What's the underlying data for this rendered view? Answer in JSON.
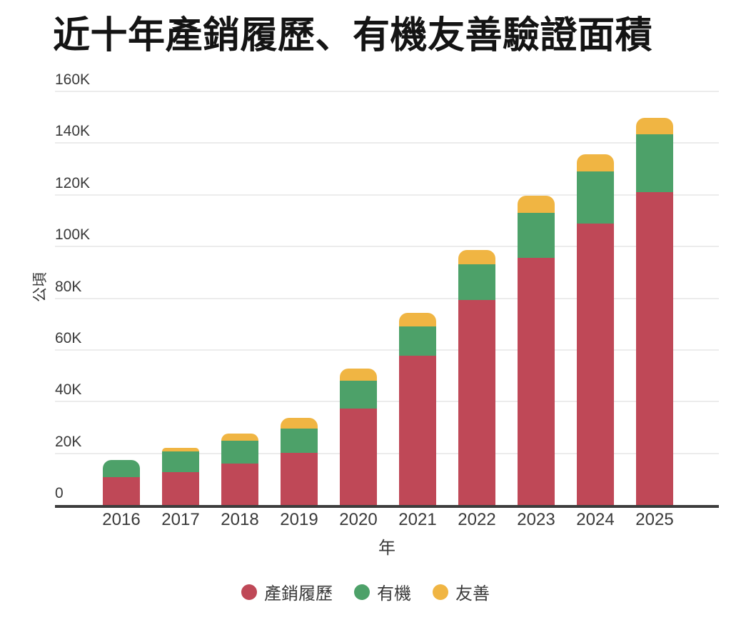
{
  "page": {
    "background": "#ffffff"
  },
  "chart_data": {
    "type": "bar",
    "stacked": true,
    "title": "近十年產銷履歷、有機友善驗證面積",
    "xlabel": "年",
    "ylabel": "公頃",
    "categories": [
      "2016",
      "2017",
      "2018",
      "2019",
      "2020",
      "2021",
      "2022",
      "2023",
      "2024",
      "2025"
    ],
    "series": [
      {
        "key": "traceability",
        "name": "產銷履歷",
        "color": "#bf4857",
        "values": [
          10800,
          12700,
          15900,
          20100,
          37200,
          57700,
          79300,
          95700,
          109000,
          121000
        ]
      },
      {
        "key": "organic",
        "name": "有機",
        "color": "#4da169",
        "values": [
          6600,
          8000,
          8900,
          9400,
          11000,
          11300,
          13900,
          17400,
          20100,
          22300
        ]
      },
      {
        "key": "friendly",
        "name": "友善",
        "color": "#f0b543",
        "values": [
          0,
          1400,
          2800,
          4100,
          4700,
          5200,
          5500,
          6600,
          6500,
          6500
        ]
      }
    ],
    "ylim": [
      0,
      160000
    ],
    "yticks": [
      {
        "value": 0,
        "label": "0"
      },
      {
        "value": 20000,
        "label": "20K"
      },
      {
        "value": 40000,
        "label": "40K"
      },
      {
        "value": 60000,
        "label": "60K"
      },
      {
        "value": 80000,
        "label": "80K"
      },
      {
        "value": 100000,
        "label": "100K"
      },
      {
        "value": 120000,
        "label": "120K"
      },
      {
        "value": 140000,
        "label": "140K"
      },
      {
        "value": 160000,
        "label": "160K"
      }
    ],
    "grid": "horizontal",
    "legend_position": "bottom"
  },
  "colors": {
    "traceability_red": "#bf4857",
    "organic_green": "#4da169",
    "friendly_yellow": "#f0b543",
    "axis_line": "#3d3d3d",
    "grid_line": "#ececec",
    "text": "#3a3a3a",
    "title_text": "#141414",
    "background": "#ffffff"
  }
}
